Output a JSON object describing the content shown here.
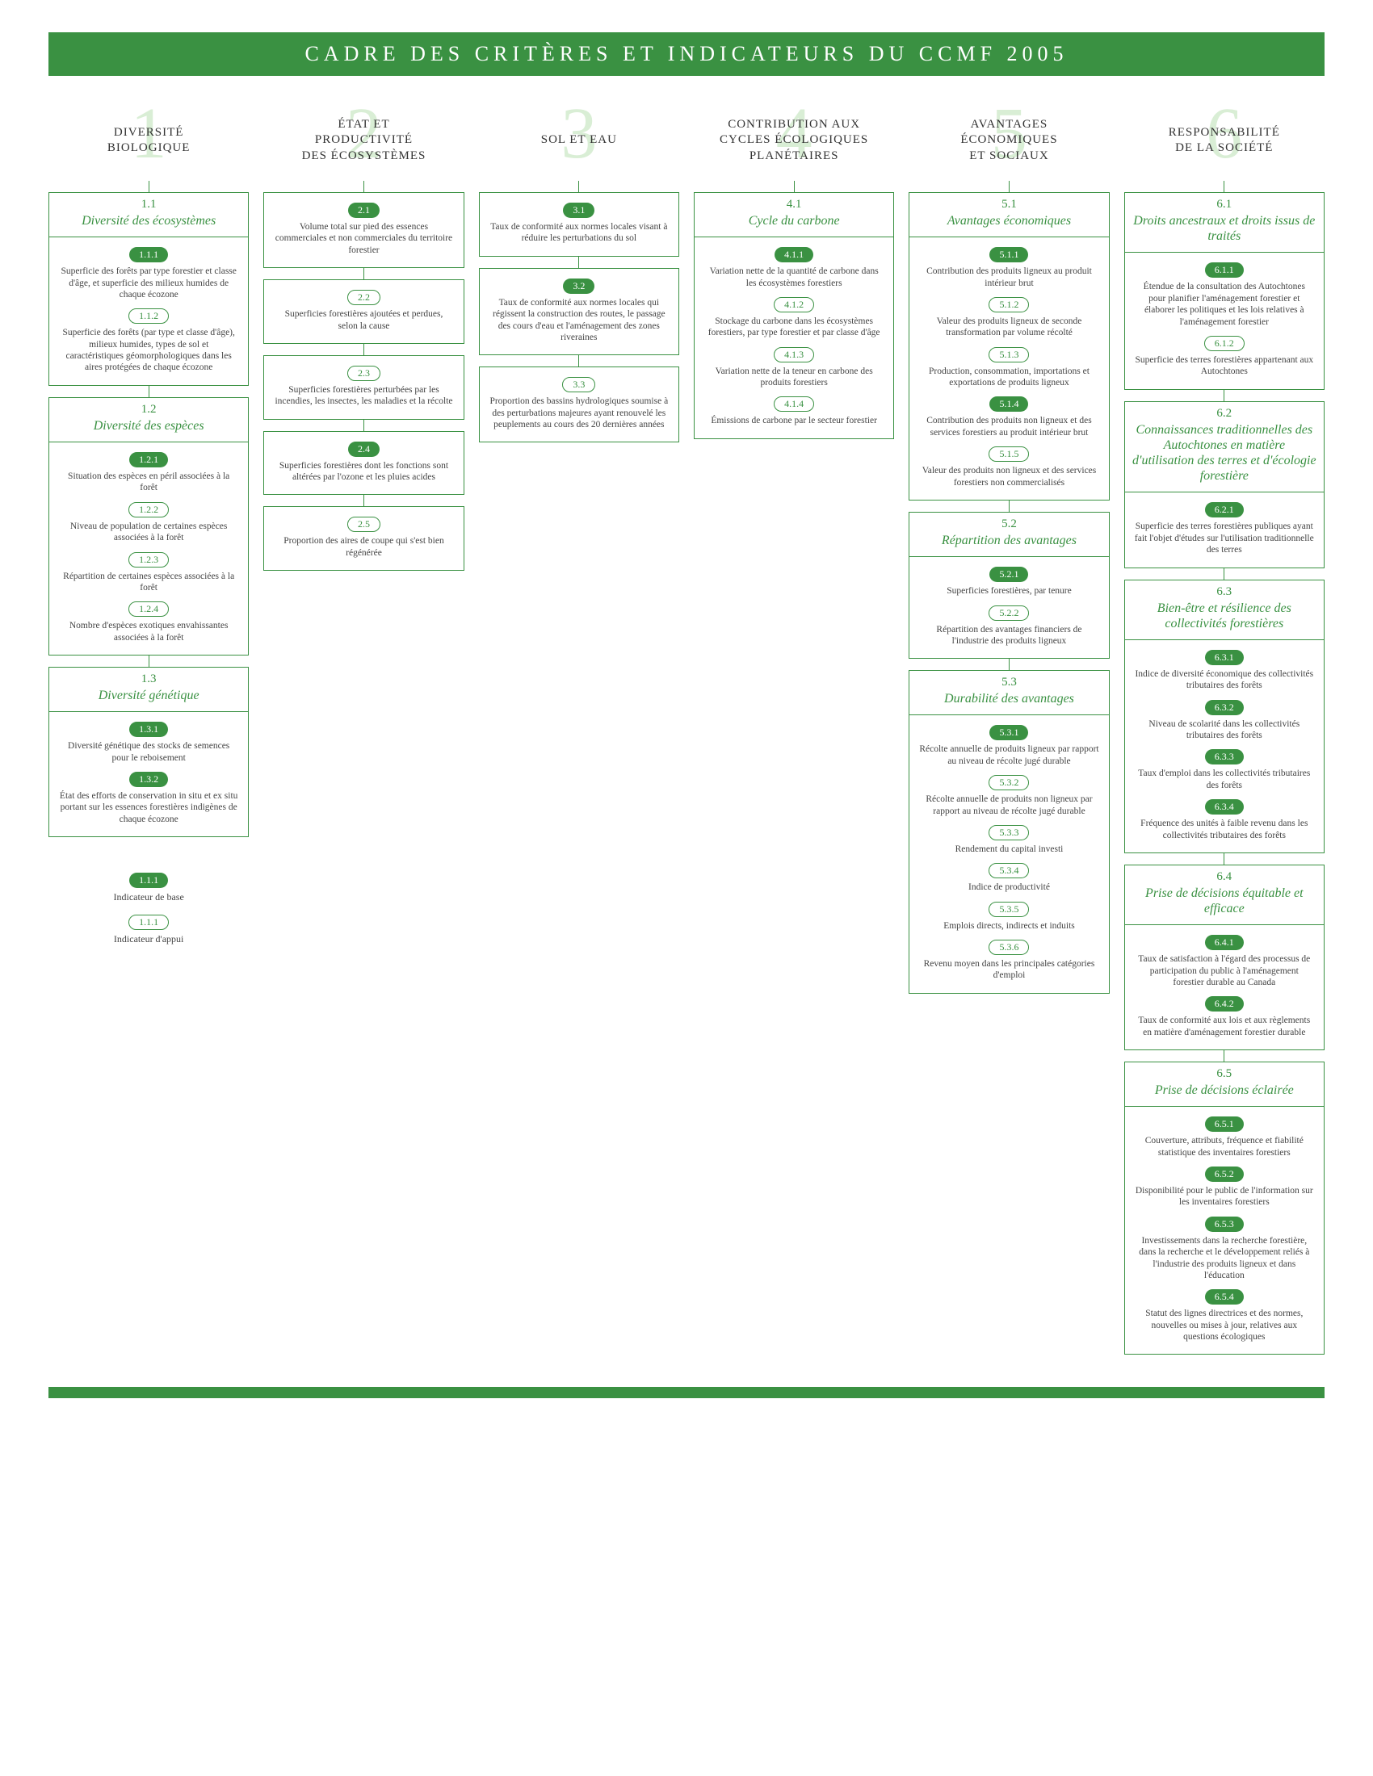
{
  "colors": {
    "green": "#3a9142",
    "lightGreen": "#d9eed5",
    "white": "#ffffff",
    "text": "#333333"
  },
  "title": "CADRE DES CRITÈRES ET INDICATEURS DU CCMF 2005",
  "legend": {
    "base_pill": "1.1.1",
    "base_label": "Indicateur de base",
    "support_pill": "1.1.1",
    "support_label": "Indicateur d'appui"
  },
  "criteria": [
    {
      "num": "1",
      "title": "DIVERSITÉ\nBIOLOGIQUE",
      "elements": [
        {
          "num": "1.1",
          "title": "Diversité des écosystèmes",
          "indicators": [
            {
              "id": "1.1.1",
              "type": "core",
              "text": "Superficie des forêts par type forestier et classe d'âge, et superficie des milieux humides de chaque écozone"
            },
            {
              "id": "1.1.2",
              "type": "support",
              "text": "Superficie des forêts (par type et classe d'âge), milieux humides, types de sol et caractéristiques géomorphologiques dans les aires protégées de chaque écozone"
            }
          ]
        },
        {
          "num": "1.2",
          "title": "Diversité des espèces",
          "indicators": [
            {
              "id": "1.2.1",
              "type": "core",
              "text": "Situation des espèces en péril associées à la forêt"
            },
            {
              "id": "1.2.2",
              "type": "support",
              "text": "Niveau de population de certaines espèces associées à la forêt"
            },
            {
              "id": "1.2.3",
              "type": "support",
              "text": "Répartition de certaines espèces associées à la forêt"
            },
            {
              "id": "1.2.4",
              "type": "support",
              "text": "Nombre d'espèces exotiques envahissantes associées à la forêt"
            }
          ]
        },
        {
          "num": "1.3",
          "title": "Diversité génétique",
          "indicators": [
            {
              "id": "1.3.1",
              "type": "core",
              "text": "Diversité génétique des stocks de semences pour le reboisement"
            },
            {
              "id": "1.3.2",
              "type": "core",
              "text": "État des efforts de conservation in situ et ex situ portant sur les essences forestières indigènes de chaque écozone"
            }
          ]
        }
      ]
    },
    {
      "num": "2",
      "title": "ÉTAT ET\nPRODUCTIVITÉ\nDES ÉCOSYSTÈMES",
      "elements": [
        {
          "noheader": true,
          "indicators": [
            {
              "id": "2.1",
              "type": "core",
              "text": "Volume total sur pied des essences commerciales et non commerciales du territoire forestier"
            }
          ]
        },
        {
          "noheader": true,
          "indicators": [
            {
              "id": "2.2",
              "type": "support",
              "text": "Superficies forestières ajoutées et perdues, selon la cause"
            }
          ]
        },
        {
          "noheader": true,
          "indicators": [
            {
              "id": "2.3",
              "type": "support",
              "text": "Superficies forestières perturbées par les incendies, les insectes, les maladies et la récolte"
            }
          ]
        },
        {
          "noheader": true,
          "indicators": [
            {
              "id": "2.4",
              "type": "core",
              "text": "Superficies forestières dont les fonctions sont altérées par l'ozone et les pluies acides"
            }
          ]
        },
        {
          "noheader": true,
          "indicators": [
            {
              "id": "2.5",
              "type": "support",
              "text": "Proportion des aires de coupe qui s'est bien régénérée"
            }
          ]
        }
      ]
    },
    {
      "num": "3",
      "title": "SOL ET EAU",
      "elements": [
        {
          "noheader": true,
          "indicators": [
            {
              "id": "3.1",
              "type": "core",
              "text": "Taux de conformité aux normes locales visant à réduire les perturbations du sol"
            }
          ]
        },
        {
          "noheader": true,
          "indicators": [
            {
              "id": "3.2",
              "type": "core",
              "text": "Taux de conformité aux normes locales qui régissent la construction des routes, le passage des cours d'eau et l'aménagement des zones riveraines"
            }
          ]
        },
        {
          "noheader": true,
          "indicators": [
            {
              "id": "3.3",
              "type": "support",
              "text": "Proportion des bassins hydrologiques soumise à des perturbations majeures ayant renouvelé les peuplements au cours des 20 dernières années"
            }
          ]
        }
      ]
    },
    {
      "num": "4",
      "title": "CONTRIBUTION AUX\nCYCLES ÉCOLOGIQUES\nPLANÉTAIRES",
      "elements": [
        {
          "num": "4.1",
          "title": "Cycle du carbone",
          "indicators": [
            {
              "id": "4.1.1",
              "type": "core",
              "text": "Variation nette de la quantité de carbone dans les écosystèmes forestiers"
            },
            {
              "id": "4.1.2",
              "type": "support",
              "text": "Stockage du carbone dans les écosystèmes forestiers, par type forestier et par classe d'âge"
            },
            {
              "id": "4.1.3",
              "type": "support",
              "text": "Variation nette de la teneur en carbone des produits forestiers"
            },
            {
              "id": "4.1.4",
              "type": "support",
              "text": "Émissions de carbone par le secteur forestier"
            }
          ]
        }
      ]
    },
    {
      "num": "5",
      "title": "AVANTAGES\nÉCONOMIQUES\nET SOCIAUX",
      "elements": [
        {
          "num": "5.1",
          "title": "Avantages économiques",
          "indicators": [
            {
              "id": "5.1.1",
              "type": "core",
              "text": "Contribution des produits ligneux au produit intérieur brut"
            },
            {
              "id": "5.1.2",
              "type": "support",
              "text": "Valeur des produits ligneux de seconde transformation par volume récolté"
            },
            {
              "id": "5.1.3",
              "type": "support",
              "text": "Production, consommation, importations et exportations de produits ligneux"
            },
            {
              "id": "5.1.4",
              "type": "core",
              "text": "Contribution des produits non ligneux et des services forestiers au produit intérieur brut"
            },
            {
              "id": "5.1.5",
              "type": "support",
              "text": "Valeur des produits non ligneux et des services forestiers non commercialisés"
            }
          ]
        },
        {
          "num": "5.2",
          "title": "Répartition des avantages",
          "indicators": [
            {
              "id": "5.2.1",
              "type": "core",
              "text": "Superficies forestières, par tenure"
            },
            {
              "id": "5.2.2",
              "type": "support",
              "text": "Répartition des avantages financiers de l'industrie des produits ligneux"
            }
          ]
        },
        {
          "num": "5.3",
          "title": "Durabilité des avantages",
          "indicators": [
            {
              "id": "5.3.1",
              "type": "core",
              "text": "Récolte annuelle de produits ligneux par rapport au niveau de récolte jugé durable"
            },
            {
              "id": "5.3.2",
              "type": "support",
              "text": "Récolte annuelle de produits non ligneux par rapport au niveau de récolte jugé durable"
            },
            {
              "id": "5.3.3",
              "type": "support",
              "text": "Rendement du capital investi"
            },
            {
              "id": "5.3.4",
              "type": "support",
              "text": "Indice de productivité"
            },
            {
              "id": "5.3.5",
              "type": "support",
              "text": "Emplois directs, indirects et induits"
            },
            {
              "id": "5.3.6",
              "type": "support",
              "text": "Revenu moyen dans les principales catégories d'emploi"
            }
          ]
        }
      ]
    },
    {
      "num": "6",
      "title": "RESPONSABILITÉ\nDE LA SOCIÉTÉ",
      "elements": [
        {
          "num": "6.1",
          "title": "Droits ancestraux et droits issus de traités",
          "indicators": [
            {
              "id": "6.1.1",
              "type": "core",
              "text": "Étendue de la consultation des Autochtones pour planifier l'aménagement forestier et élaborer les politiques et les lois relatives à l'aménagement forestier"
            },
            {
              "id": "6.1.2",
              "type": "support",
              "text": "Superficie des terres forestières appartenant aux Autochtones"
            }
          ]
        },
        {
          "num": "6.2",
          "title": "Connaissances traditionnelles des Autochtones en matière d'utilisation des terres et d'écologie forestière",
          "indicators": [
            {
              "id": "6.2.1",
              "type": "core",
              "text": "Superficie des terres forestières publiques ayant fait l'objet d'études sur l'utilisation traditionnelle des terres"
            }
          ]
        },
        {
          "num": "6.3",
          "title": "Bien-être et résilience des collectivités forestières",
          "indicators": [
            {
              "id": "6.3.1",
              "type": "core",
              "text": "Indice de diversité économique des collectivités tributaires des forêts"
            },
            {
              "id": "6.3.2",
              "type": "core",
              "text": "Niveau de scolarité dans les collectivités tributaires des forêts"
            },
            {
              "id": "6.3.3",
              "type": "core",
              "text": "Taux d'emploi dans les collectivités tributaires des forêts"
            },
            {
              "id": "6.3.4",
              "type": "core",
              "text": "Fréquence des unités à faible revenu dans les collectivités tributaires des forêts"
            }
          ]
        },
        {
          "num": "6.4",
          "title": "Prise de décisions équitable et efficace",
          "indicators": [
            {
              "id": "6.4.1",
              "type": "core",
              "text": "Taux de satisfaction à l'égard des processus de participation du public à l'aménagement forestier durable au Canada"
            },
            {
              "id": "6.4.2",
              "type": "core",
              "text": "Taux de conformité aux lois et aux règlements en matière d'aménagement forestier durable"
            }
          ]
        },
        {
          "num": "6.5",
          "title": "Prise de décisions éclairée",
          "indicators": [
            {
              "id": "6.5.1",
              "type": "core",
              "text": "Couverture, attributs, fréquence et fiabilité statistique des inventaires forestiers"
            },
            {
              "id": "6.5.2",
              "type": "core",
              "text": "Disponibilité pour le public de l'information sur les inventaires forestiers"
            },
            {
              "id": "6.5.3",
              "type": "core",
              "text": "Investissements dans la recherche forestière, dans la recherche et le développement reliés à l'industrie des produits ligneux et dans l'éducation"
            },
            {
              "id": "6.5.4",
              "type": "core",
              "text": "Statut des lignes directrices et des normes, nouvelles ou mises à jour, relatives aux questions écologiques"
            }
          ]
        }
      ]
    }
  ]
}
